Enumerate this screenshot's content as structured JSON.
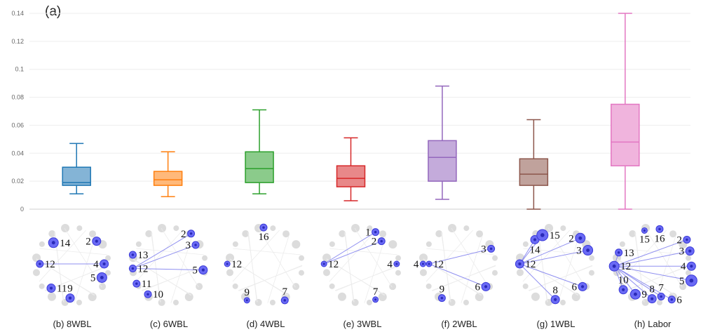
{
  "panel_label": "(a)",
  "chart_data": {
    "type": "box",
    "title": "",
    "xlabel": "",
    "ylabel": "",
    "ylim": [
      0,
      0.14
    ],
    "yticks": [
      "0",
      "0.02",
      "0.04",
      "0.06",
      "0.08",
      "0.1",
      "0.12",
      "0.14"
    ],
    "grid": "horizontal",
    "boxes": [
      {
        "category": "8WBL",
        "min": 0.011,
        "q1": 0.017,
        "median": 0.019,
        "q3": 0.03,
        "max": 0.047,
        "color": "#1f77b4"
      },
      {
        "category": "6WBL",
        "min": 0.009,
        "q1": 0.017,
        "median": 0.021,
        "q3": 0.027,
        "max": 0.041,
        "color": "#ff7f0e"
      },
      {
        "category": "4WBL",
        "min": 0.011,
        "q1": 0.019,
        "median": 0.029,
        "q3": 0.041,
        "max": 0.071,
        "color": "#2ca02c"
      },
      {
        "category": "3WBL",
        "min": 0.006,
        "q1": 0.016,
        "median": 0.022,
        "q3": 0.031,
        "max": 0.051,
        "color": "#d62728"
      },
      {
        "category": "2WBL",
        "min": 0.007,
        "q1": 0.02,
        "median": 0.037,
        "q3": 0.049,
        "max": 0.088,
        "color": "#9467bd"
      },
      {
        "category": "1WBL",
        "min": 0.0,
        "q1": 0.017,
        "median": 0.025,
        "q3": 0.036,
        "max": 0.064,
        "color": "#8c564b"
      },
      {
        "category": "Labor",
        "min": 0.0,
        "q1": 0.031,
        "median": 0.048,
        "q3": 0.075,
        "max": 0.14,
        "color": "#e377c2"
      }
    ]
  },
  "networks": [
    {
      "caption": "(b) 8WBL",
      "nodes": [
        {
          "label": "14",
          "node_size": 7,
          "spot": [
            0.28,
            0.22
          ],
          "label_side": "right"
        },
        {
          "label": "2",
          "node_size": 6,
          "spot": [
            0.85,
            0.2
          ],
          "label_side": "left"
        },
        {
          "label": "12",
          "node_size": 5,
          "spot": [
            0.1,
            0.5
          ],
          "label_side": "right"
        },
        {
          "label": "4",
          "node_size": 6,
          "spot": [
            0.95,
            0.5
          ],
          "label_side": "left"
        },
        {
          "label": "5",
          "node_size": 7,
          "spot": [
            0.92,
            0.68
          ],
          "label_side": "left"
        },
        {
          "label": "11",
          "node_size": 6,
          "spot": [
            0.25,
            0.82
          ],
          "label_side": "right"
        },
        {
          "label": "9",
          "node_size": 6,
          "spot": [
            0.5,
            0.95
          ],
          "label_side": "above"
        }
      ],
      "edges": [
        [
          2,
          3
        ]
      ]
    },
    {
      "caption": "(c) 6WBL",
      "nodes": [
        {
          "label": "2",
          "node_size": 5,
          "spot": [
            0.82,
            0.1
          ],
          "label_side": "left"
        },
        {
          "label": "3",
          "node_size": 5,
          "spot": [
            0.88,
            0.25
          ],
          "label_side": "left"
        },
        {
          "label": "13",
          "node_size": 5,
          "spot": [
            0.05,
            0.38
          ],
          "label_side": "right"
        },
        {
          "label": "12",
          "node_size": 5,
          "spot": [
            0.05,
            0.56
          ],
          "label_side": "right"
        },
        {
          "label": "5",
          "node_size": 6,
          "spot": [
            0.98,
            0.58
          ],
          "label_side": "left"
        },
        {
          "label": "11",
          "node_size": 5,
          "spot": [
            0.1,
            0.76
          ],
          "label_side": "right"
        },
        {
          "label": "10",
          "node_size": 5,
          "spot": [
            0.25,
            0.9
          ],
          "label_side": "right"
        }
      ],
      "edges": [
        [
          3,
          0
        ],
        [
          3,
          1
        ],
        [
          3,
          4
        ]
      ]
    },
    {
      "caption": "(d) 4WBL",
      "nodes": [
        {
          "label": "16",
          "node_size": 5,
          "spot": [
            0.5,
            0.02
          ],
          "label_side": "below"
        },
        {
          "label": "12",
          "node_size": 4,
          "spot": [
            0.02,
            0.5
          ],
          "label_side": "right"
        },
        {
          "label": "9",
          "node_size": 4,
          "spot": [
            0.28,
            0.98
          ],
          "label_side": "above"
        },
        {
          "label": "7",
          "node_size": 5,
          "spot": [
            0.78,
            0.98
          ],
          "label_side": "above"
        }
      ],
      "edges": []
    },
    {
      "caption": "(e) 3WBL",
      "nodes": [
        {
          "label": "1",
          "node_size": 5,
          "spot": [
            0.7,
            0.08
          ],
          "label_side": "left"
        },
        {
          "label": "2",
          "node_size": 5,
          "spot": [
            0.78,
            0.2
          ],
          "label_side": "left"
        },
        {
          "label": "12",
          "node_size": 4,
          "spot": [
            0.02,
            0.5
          ],
          "label_side": "right"
        },
        {
          "label": "4",
          "node_size": 4,
          "spot": [
            0.98,
            0.5
          ],
          "label_side": "left"
        },
        {
          "label": "7",
          "node_size": 4,
          "spot": [
            0.7,
            0.97
          ],
          "label_side": "above"
        }
      ],
      "edges": [
        [
          2,
          0
        ],
        [
          2,
          1
        ]
      ]
    },
    {
      "caption": "(f) 2WBL",
      "nodes": [
        {
          "label": "3",
          "node_size": 5,
          "spot": [
            0.95,
            0.3
          ],
          "label_side": "left"
        },
        {
          "label": "4",
          "node_size": 4,
          "spot": [
            0.05,
            0.5
          ],
          "label_side": "left"
        },
        {
          "label": "12",
          "node_size": 4,
          "spot": [
            0.13,
            0.5
          ],
          "label_side": "right"
        },
        {
          "label": "9",
          "node_size": 5,
          "spot": [
            0.3,
            0.95
          ],
          "label_side": "above"
        },
        {
          "label": "6",
          "node_size": 6,
          "spot": [
            0.88,
            0.8
          ],
          "label_side": "left"
        }
      ],
      "edges": [
        [
          2,
          0
        ],
        [
          2,
          4
        ]
      ]
    },
    {
      "caption": "(g) 1WBL",
      "nodes": [
        {
          "label": "14",
          "node_size": 6,
          "spot": [
            0.25,
            0.18
          ],
          "label_side": "below"
        },
        {
          "label": "15",
          "node_size": 8,
          "spot": [
            0.35,
            0.12
          ],
          "label_side": "right"
        },
        {
          "label": "2",
          "node_size": 7,
          "spot": [
            0.85,
            0.16
          ],
          "label_side": "left"
        },
        {
          "label": "3",
          "node_size": 7,
          "spot": [
            0.95,
            0.32
          ],
          "label_side": "left"
        },
        {
          "label": "12",
          "node_size": 6,
          "spot": [
            0.05,
            0.5
          ],
          "label_side": "right"
        },
        {
          "label": "6",
          "node_size": 6,
          "spot": [
            0.88,
            0.8
          ],
          "label_side": "left"
        },
        {
          "label": "8",
          "node_size": 6,
          "spot": [
            0.52,
            0.97
          ],
          "label_side": "above"
        }
      ],
      "edges": [
        [
          4,
          0
        ],
        [
          4,
          1
        ],
        [
          4,
          2
        ],
        [
          4,
          3
        ],
        [
          4,
          5
        ],
        [
          4,
          6
        ]
      ]
    },
    {
      "caption": "(h) Labor",
      "nodes": [
        {
          "label": "15",
          "node_size": 4,
          "spot": [
            0.42,
            0.06
          ],
          "label_side": "below"
        },
        {
          "label": "16",
          "node_size": 5,
          "spot": [
            0.62,
            0.04
          ],
          "label_side": "below"
        },
        {
          "label": "2",
          "node_size": 5,
          "spot": [
            0.98,
            0.18
          ],
          "label_side": "left"
        },
        {
          "label": "13",
          "node_size": 5,
          "spot": [
            0.08,
            0.35
          ],
          "label_side": "right"
        },
        {
          "label": "3",
          "node_size": 6,
          "spot": [
            1.02,
            0.33
          ],
          "label_side": "left"
        },
        {
          "label": "12",
          "node_size": 7,
          "spot": [
            0.02,
            0.53
          ],
          "label_side": "right"
        },
        {
          "label": "4",
          "node_size": 6,
          "spot": [
            1.04,
            0.53
          ],
          "label_side": "left"
        },
        {
          "label": "5",
          "node_size": 8,
          "spot": [
            1.04,
            0.72
          ],
          "label_side": "left"
        },
        {
          "label": "10",
          "node_size": 6,
          "spot": [
            0.14,
            0.84
          ],
          "label_side": "above"
        },
        {
          "label": "9",
          "node_size": 7,
          "spot": [
            0.3,
            0.9
          ],
          "label_side": "right"
        },
        {
          "label": "8",
          "node_size": 6,
          "spot": [
            0.52,
            0.96
          ],
          "label_side": "above"
        },
        {
          "label": "7",
          "node_size": 5,
          "spot": [
            0.64,
            0.93
          ],
          "label_side": "above"
        },
        {
          "label": "6",
          "node_size": 5,
          "spot": [
            0.78,
            0.97
          ],
          "label_side": "right"
        }
      ],
      "edges": [
        [
          5,
          3
        ],
        [
          5,
          2
        ],
        [
          5,
          4
        ],
        [
          5,
          6
        ],
        [
          5,
          7
        ],
        [
          5,
          8
        ],
        [
          5,
          9
        ],
        [
          5,
          10
        ],
        [
          5,
          11
        ],
        [
          5,
          12
        ]
      ]
    }
  ]
}
